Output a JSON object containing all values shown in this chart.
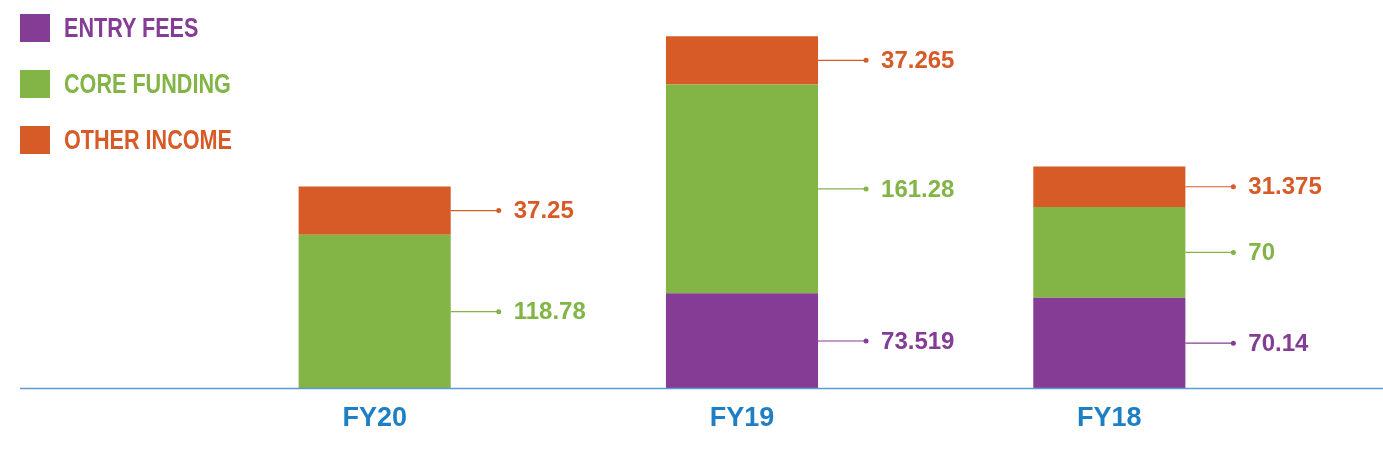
{
  "chart_data": {
    "type": "bar",
    "stacked": true,
    "categories": [
      "FY20",
      "FY19",
      "FY18"
    ],
    "series": [
      {
        "name": "ENTRY FEES",
        "color": "#843c94",
        "values": [
          null,
          73.519,
          70.14
        ]
      },
      {
        "name": "CORE FUNDING",
        "color": "#82b446",
        "values": [
          118.78,
          161.28,
          70
        ]
      },
      {
        "name": "OTHER INCOME",
        "color": "#d75b27",
        "values": [
          37.25,
          37.265,
          31.375
        ]
      }
    ],
    "data_labels": true,
    "legend": "top left",
    "tick_labels": "x",
    "grid": false
  }
}
